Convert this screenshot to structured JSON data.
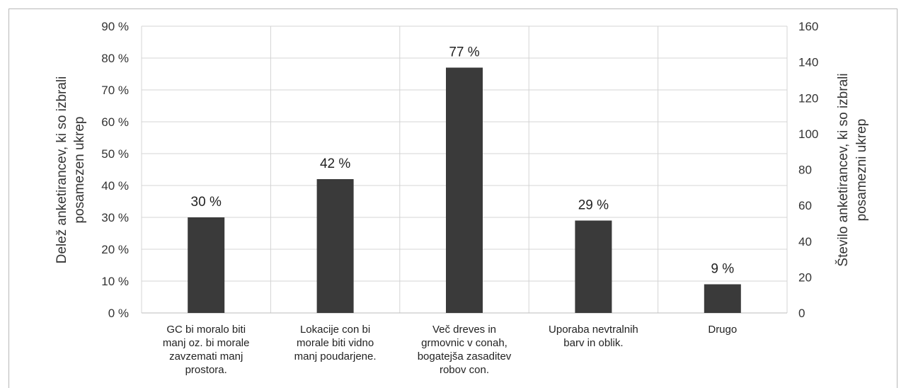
{
  "chart_data": {
    "type": "bar",
    "categories": [
      [
        "GC bi moralo biti",
        "manj oz. bi morale",
        "zavzemati manj",
        "prostora."
      ],
      [
        "Lokacije con bi",
        "morale biti vidno",
        "manj poudarjene."
      ],
      [
        "Več dreves in",
        "grmovnic v conah,",
        "bogatejša zasaditev",
        "robov con."
      ],
      [
        "Uporaba nevtralnih",
        "barv in oblik."
      ],
      [
        "Drugo"
      ]
    ],
    "values": [
      30,
      42,
      77,
      29,
      9
    ],
    "data_labels": [
      "30 %",
      "42 %",
      "77 %",
      "29 %",
      "9 %"
    ],
    "ylabel_left": [
      "Delež anketirancev, ki so izbrali",
      "posamezen ukrep"
    ],
    "ylabel_right": [
      "Število anketirancev, ki so izbrali",
      "posamezni ukrep"
    ],
    "y_left_ticks": [
      "0 %",
      "10 %",
      "20 %",
      "30 %",
      "40 %",
      "50 %",
      "60 %",
      "70 %",
      "80 %",
      "90 %"
    ],
    "y_right_ticks": [
      "0",
      "20",
      "40",
      "60",
      "80",
      "100",
      "120",
      "140",
      "160"
    ],
    "ylim_left": [
      0,
      90
    ],
    "ylim_right": [
      0,
      160
    ],
    "grid": true,
    "bar_color": "#3a3a3a"
  }
}
